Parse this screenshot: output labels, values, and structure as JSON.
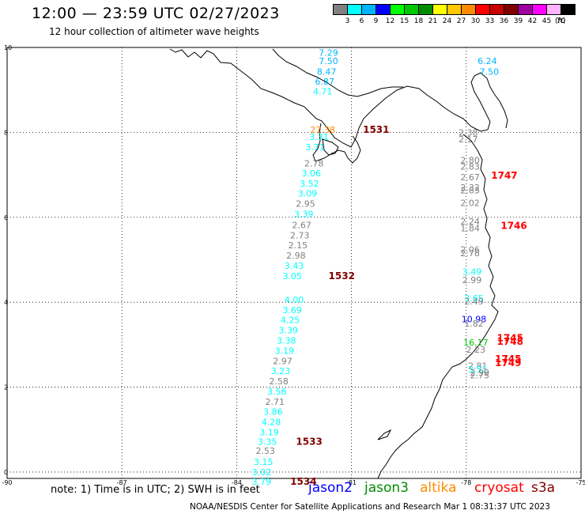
{
  "header": {
    "title": "12:00 — 23:59 UTC 02/27/2023",
    "subtitle": "12 hour collection of altimeter wave heights"
  },
  "color_scale": {
    "unit": "(ft)",
    "bins": [
      {
        "label": "3",
        "color": "#808080"
      },
      {
        "label": "6",
        "color": "#00ffff"
      },
      {
        "label": "9",
        "color": "#00b4ff"
      },
      {
        "label": "12",
        "color": "#0000ff"
      },
      {
        "label": "15",
        "color": "#00ff00"
      },
      {
        "label": "18",
        "color": "#00c800"
      },
      {
        "label": "21",
        "color": "#008c00"
      },
      {
        "label": "24",
        "color": "#ffff00"
      },
      {
        "label": "27",
        "color": "#ffc800"
      },
      {
        "label": "30",
        "color": "#ff8c00"
      },
      {
        "label": "33",
        "color": "#ff0000"
      },
      {
        "label": "36",
        "color": "#c80000"
      },
      {
        "label": "39",
        "color": "#800000"
      },
      {
        "label": "42",
        "color": "#a000a0"
      },
      {
        "label": "45",
        "color": "#ff00ff"
      },
      {
        "label": "70",
        "color": "#ffb4ff"
      },
      {
        "label": "",
        "color": "#000000"
      }
    ]
  },
  "axes": {
    "x_ticks": [
      "-90",
      "-87",
      "-84",
      "-81",
      "-78",
      "-75"
    ],
    "y_ticks": [
      "10",
      "8",
      "6",
      "4",
      "2",
      "0"
    ]
  },
  "tracks": [
    {
      "time": "1531",
      "time_color": "#800000",
      "time_lon": -80.7,
      "time_lat": 8.06,
      "points": [
        {
          "lon": -81.6,
          "lat": 9.88,
          "v": "7.29"
        },
        {
          "lon": -81.6,
          "lat": 9.68,
          "v": "7.50"
        },
        {
          "lon": -81.65,
          "lat": 9.43,
          "v": "8.47"
        },
        {
          "lon": -81.7,
          "lat": 9.2,
          "v": "6.87"
        },
        {
          "lon": -81.75,
          "lat": 8.97,
          "v": "4.71"
        },
        {
          "lon": -81.75,
          "lat": 8.06,
          "v": "27.38"
        },
        {
          "lon": -81.85,
          "lat": 7.9,
          "v": "3.31"
        },
        {
          "lon": -81.95,
          "lat": 7.65,
          "v": "3.71"
        },
        {
          "lon": -81.98,
          "lat": 7.27,
          "v": "2.78"
        },
        {
          "lon": -82.05,
          "lat": 7.04,
          "v": "3.06"
        },
        {
          "lon": -82.1,
          "lat": 6.8,
          "v": "3.52"
        },
        {
          "lon": -82.15,
          "lat": 6.56,
          "v": "3.09"
        },
        {
          "lon": -82.2,
          "lat": 6.32,
          "v": "2.95"
        },
        {
          "lon": -82.25,
          "lat": 6.08,
          "v": "3.39"
        },
        {
          "lon": -82.3,
          "lat": 5.82,
          "v": "2.67"
        },
        {
          "lon": -82.35,
          "lat": 5.58,
          "v": "2.73"
        },
        {
          "lon": -82.4,
          "lat": 5.34,
          "v": "2.15"
        },
        {
          "lon": -82.45,
          "lat": 5.1,
          "v": "2.98"
        },
        {
          "lon": -82.5,
          "lat": 4.86,
          "v": "3.43"
        },
        {
          "lon": -82.55,
          "lat": 4.62,
          "v": "3.05"
        }
      ]
    },
    {
      "time": "1532",
      "time_color": "#800000",
      "time_lon": -81.6,
      "time_lat": 4.62,
      "points": [
        {
          "lon": -82.5,
          "lat": 4.06,
          "v": "4.00"
        },
        {
          "lon": -82.55,
          "lat": 3.82,
          "v": "3.69"
        },
        {
          "lon": -82.6,
          "lat": 3.58,
          "v": "4.25"
        },
        {
          "lon": -82.65,
          "lat": 3.34,
          "v": "3.39"
        },
        {
          "lon": -82.7,
          "lat": 3.1,
          "v": "3.38"
        },
        {
          "lon": -82.75,
          "lat": 2.86,
          "v": "3.19"
        },
        {
          "lon": -82.8,
          "lat": 2.62,
          "v": "2.97"
        },
        {
          "lon": -82.85,
          "lat": 2.38,
          "v": "3.23"
        },
        {
          "lon": -82.9,
          "lat": 2.14,
          "v": "2.58"
        },
        {
          "lon": -82.95,
          "lat": 1.9,
          "v": "3.56"
        },
        {
          "lon": -83.0,
          "lat": 1.66,
          "v": "2.71"
        },
        {
          "lon": -83.05,
          "lat": 1.42,
          "v": "3.86"
        },
        {
          "lon": -83.1,
          "lat": 1.18,
          "v": "4.28"
        },
        {
          "lon": -83.15,
          "lat": 0.94,
          "v": "3.19"
        }
      ]
    },
    {
      "time": "1533",
      "time_color": "#800000",
      "time_lon": -82.45,
      "time_lat": 0.72,
      "points": [
        {
          "lon": -83.2,
          "lat": 0.72,
          "v": "3.35"
        },
        {
          "lon": -83.25,
          "lat": 0.5,
          "v": "2.53"
        },
        {
          "lon": -83.3,
          "lat": 0.24,
          "v": "3.15"
        },
        {
          "lon": -83.35,
          "lat": 0.0,
          "v": "3.02"
        }
      ]
    },
    {
      "time": "1534",
      "time_color": "#800000",
      "time_lon": -82.6,
      "time_lat": -0.22,
      "points": [
        {
          "lon": -83.35,
          "lat": -0.22,
          "v": "3.79"
        }
      ]
    },
    {
      "time": "1747",
      "time_color": "#ff0000",
      "time_lon": -77.35,
      "time_lat": 6.98,
      "points": [
        {
          "lon": -77.45,
          "lat": 9.68,
          "v": "6.24"
        },
        {
          "lon": -77.4,
          "lat": 9.43,
          "v": "7.50"
        },
        {
          "lon": -77.95,
          "lat": 8.0,
          "v": "2.38"
        },
        {
          "lon": -77.95,
          "lat": 7.84,
          "v": "2.17"
        },
        {
          "lon": -77.9,
          "lat": 7.35,
          "v": "2.80"
        },
        {
          "lon": -77.9,
          "lat": 7.2,
          "v": "2.83"
        },
        {
          "lon": -77.9,
          "lat": 6.95,
          "v": "2.67"
        },
        {
          "lon": -77.9,
          "lat": 6.7,
          "v": "2.32"
        },
        {
          "lon": -77.9,
          "lat": 6.64,
          "v": "2.83"
        },
        {
          "lon": -77.9,
          "lat": 6.34,
          "v": "2.02"
        }
      ]
    },
    {
      "time": "1746",
      "time_color": "#ff0000",
      "time_lon": -77.1,
      "time_lat": 5.8,
      "points": [
        {
          "lon": -77.9,
          "lat": 5.9,
          "v": "2.24"
        },
        {
          "lon": -77.9,
          "lat": 5.74,
          "v": "1.84"
        },
        {
          "lon": -77.9,
          "lat": 5.24,
          "v": "2.06"
        },
        {
          "lon": -77.9,
          "lat": 5.16,
          "v": "2.78"
        },
        {
          "lon": -77.85,
          "lat": 4.72,
          "v": "3.49"
        },
        {
          "lon": -77.85,
          "lat": 4.52,
          "v": "2.99"
        },
        {
          "lon": -77.8,
          "lat": 4.1,
          "v": "3.65"
        },
        {
          "lon": -77.8,
          "lat": 4.02,
          "v": "2.49"
        }
      ]
    },
    {
      "time": "1745",
      "time_color": "#ff0000",
      "time_lon": -77.2,
      "time_lat": 3.16,
      "points": [
        {
          "lon": -77.8,
          "lat": 3.6,
          "v": "10.98"
        },
        {
          "lon": -77.8,
          "lat": 3.5,
          "v": "1.82"
        },
        {
          "lon": -77.75,
          "lat": 3.05,
          "v": "16.17"
        },
        {
          "lon": -77.75,
          "lat": 2.89,
          "v": "2.23"
        },
        {
          "lon": -77.7,
          "lat": 2.5,
          "v": "2.81"
        },
        {
          "lon": -77.7,
          "lat": 2.42,
          "v": "3.51"
        }
      ]
    },
    {
      "time": "1748",
      "time_color": "#ff0000",
      "time_lon": -77.2,
      "time_lat": 3.07,
      "points": []
    },
    {
      "time": "1745",
      "time_color": "#ff0000",
      "time_lon": -77.25,
      "time_lat": 2.66,
      "points": [
        {
          "lon": -77.65,
          "lat": 2.35,
          "v": "2.99"
        },
        {
          "lon": -77.65,
          "lat": 2.28,
          "v": "2.75"
        }
      ]
    },
    {
      "time": "1749",
      "time_color": "#ff0000",
      "time_lon": -77.25,
      "time_lat": 2.57,
      "points": []
    }
  ],
  "note": "note: 1) Time is in UTC; 2) SWH is in feet",
  "legend": [
    {
      "label": "jason2",
      "color": "#0000ff"
    },
    {
      "label": "jason3",
      "color": "#008c00"
    },
    {
      "label": "altika",
      "color": "#ff8c00"
    },
    {
      "label": "cryosat",
      "color": "#ff0000"
    },
    {
      "label": "s3a",
      "color": "#800000"
    }
  ],
  "footer": "NOAA/NESDIS Center for Satellite Applications and Research   Mar  1 08:31:37 UTC 2023"
}
